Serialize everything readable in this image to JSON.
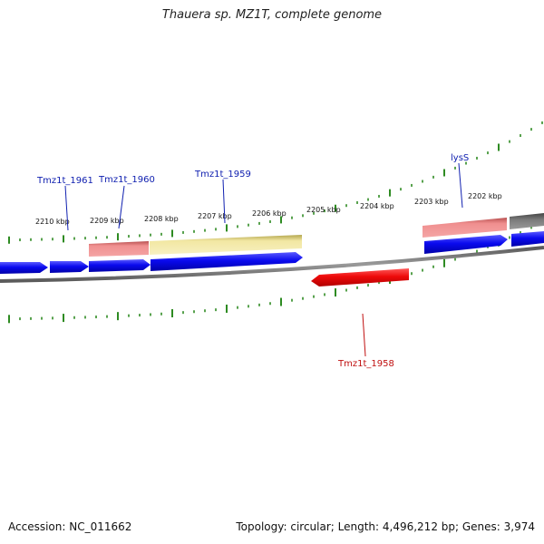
{
  "title": "Thauera sp. MZ1T, complete genome",
  "footer": {
    "accession": "Accession: NC_011662",
    "summary": "Topology: circular; Length: 4,496,212 bp; Genes: 3,974"
  },
  "colors": {
    "backbone": "#7a7a7a",
    "tick": "#2e8b22",
    "cds_forward": "#0a0aee",
    "cds_reverse": "#ee0a0a",
    "gene_pink": "#e98a8a",
    "gene_yellow": "#f1e6a0",
    "gene_gray": "#6f6f6f",
    "label_blue": "#1020b0",
    "label_red": "#c01010"
  },
  "scale_labels": [
    "2210 kbp",
    "2209 kbp",
    "2208 kbp",
    "2207 kbp",
    "2206 kbp",
    "2205 kbp",
    "2204 kbp",
    "2203 kbp",
    "2202 kbp"
  ],
  "gene_labels": [
    {
      "id": "tmz1t-1961",
      "text": "Tmz1t_1961",
      "color": "blue"
    },
    {
      "id": "tmz1t-1960",
      "text": "Tmz1t_1960",
      "color": "blue"
    },
    {
      "id": "tmz1t-1959",
      "text": "Tmz1t_1959",
      "color": "blue"
    },
    {
      "id": "lyss",
      "text": "lysS",
      "color": "blue"
    },
    {
      "id": "tmz1t-1958",
      "text": "Tmz1t_1958",
      "color": "red"
    }
  ]
}
